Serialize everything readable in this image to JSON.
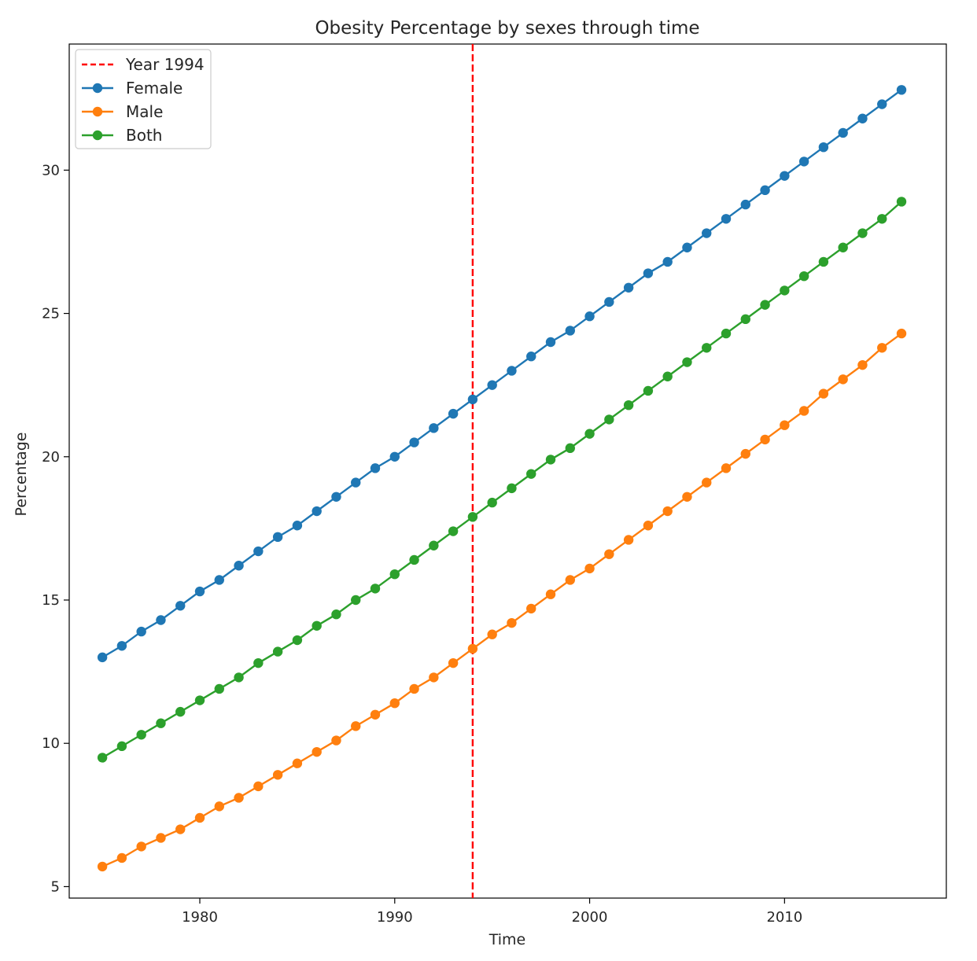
{
  "chart_data": {
    "type": "line",
    "title": "Obesity Percentage by sexes through time",
    "xlabel": "Time",
    "ylabel": "Percentage",
    "xlim": [
      1973.3,
      2018.3
    ],
    "ylim": [
      4.6,
      34.4
    ],
    "xticks": [
      1980,
      1990,
      2000,
      2010
    ],
    "yticks": [
      5,
      10,
      15,
      20,
      25,
      30
    ],
    "grid": false,
    "legend_position": "top-left",
    "x": [
      1975,
      1976,
      1977,
      1978,
      1979,
      1980,
      1981,
      1982,
      1983,
      1984,
      1985,
      1986,
      1987,
      1988,
      1989,
      1990,
      1991,
      1992,
      1993,
      1994,
      1995,
      1996,
      1997,
      1998,
      1999,
      2000,
      2001,
      2002,
      2003,
      2004,
      2005,
      2006,
      2007,
      2008,
      2009,
      2010,
      2011,
      2012,
      2013,
      2014,
      2015,
      2016
    ],
    "series": [
      {
        "name": "Female",
        "color": "#1f77b4",
        "values": [
          13.0,
          13.4,
          13.9,
          14.3,
          14.8,
          15.3,
          15.7,
          16.2,
          16.7,
          17.2,
          17.6,
          18.1,
          18.6,
          19.1,
          19.6,
          20.0,
          20.5,
          21.0,
          21.5,
          22.0,
          22.5,
          23.0,
          23.5,
          24.0,
          24.4,
          24.9,
          25.4,
          25.9,
          26.4,
          26.8,
          27.3,
          27.8,
          28.3,
          28.8,
          29.3,
          29.8,
          30.3,
          30.8,
          31.3,
          31.8,
          32.3,
          32.8
        ]
      },
      {
        "name": "Male",
        "color": "#ff7f0e",
        "values": [
          5.7,
          6.0,
          6.4,
          6.7,
          7.0,
          7.4,
          7.8,
          8.1,
          8.5,
          8.9,
          9.3,
          9.7,
          10.1,
          10.6,
          11.0,
          11.4,
          11.9,
          12.3,
          12.8,
          13.3,
          13.8,
          14.2,
          14.7,
          15.2,
          15.7,
          16.1,
          16.6,
          17.1,
          17.6,
          18.1,
          18.6,
          19.1,
          19.6,
          20.1,
          20.6,
          21.1,
          21.6,
          22.2,
          22.7,
          23.2,
          23.8,
          24.3
        ]
      },
      {
        "name": "Both",
        "color": "#2ca02c",
        "values": [
          9.5,
          9.9,
          10.3,
          10.7,
          11.1,
          11.5,
          11.9,
          12.3,
          12.8,
          13.2,
          13.6,
          14.1,
          14.5,
          15.0,
          15.4,
          15.9,
          16.4,
          16.9,
          17.4,
          17.9,
          18.4,
          18.9,
          19.4,
          19.9,
          20.3,
          20.8,
          21.3,
          21.8,
          22.3,
          22.8,
          23.3,
          23.8,
          24.3,
          24.8,
          25.3,
          25.8,
          26.3,
          26.8,
          27.3,
          27.8,
          28.3,
          28.9
        ]
      }
    ],
    "vline": {
      "x": 1994,
      "name": "Year 1994",
      "color": "#ff0000",
      "style": "dashed"
    }
  }
}
